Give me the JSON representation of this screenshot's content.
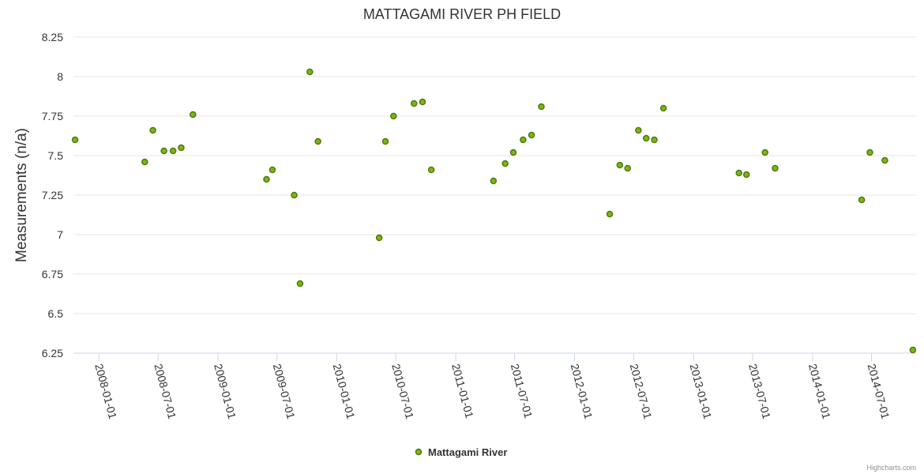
{
  "credits": "Highcharts.com",
  "chart_data": {
    "type": "scatter",
    "title": "MATTAGAMI RIVER PH FIELD",
    "xlabel": "",
    "ylabel": "Measurements (n/a)",
    "xlim": [
      "2007-10-15",
      "2014-11-15"
    ],
    "ylim": [
      6.25,
      8.25
    ],
    "y_ticks": [
      "6.25",
      "6.5",
      "6.75",
      "7",
      "7.25",
      "7.5",
      "7.75",
      "8",
      "8.25"
    ],
    "x_ticks": [
      "2008-01-01",
      "2008-07-01",
      "2009-01-01",
      "2009-07-01",
      "2010-01-01",
      "2010-07-01",
      "2011-01-01",
      "2011-07-01",
      "2012-01-01",
      "2012-07-01",
      "2013-01-01",
      "2013-07-01",
      "2014-01-01",
      "2014-07-01"
    ],
    "grid": true,
    "legend_position": "bottom-center",
    "colors": {
      "marker_fill": "#7cb518",
      "marker_stroke": "#4d7a0a"
    },
    "series": [
      {
        "name": "Mattagami River",
        "points": [
          {
            "x": "2007-10-20",
            "y": 7.6
          },
          {
            "x": "2008-05-21",
            "y": 7.46
          },
          {
            "x": "2008-06-15",
            "y": 7.66
          },
          {
            "x": "2008-07-19",
            "y": 7.53
          },
          {
            "x": "2008-08-16",
            "y": 7.53
          },
          {
            "x": "2008-09-10",
            "y": 7.55
          },
          {
            "x": "2008-10-16",
            "y": 7.76
          },
          {
            "x": "2009-05-30",
            "y": 7.35
          },
          {
            "x": "2009-06-17",
            "y": 7.41
          },
          {
            "x": "2009-08-23",
            "y": 7.25
          },
          {
            "x": "2009-09-10",
            "y": 6.69
          },
          {
            "x": "2009-10-10",
            "y": 8.03
          },
          {
            "x": "2009-11-04",
            "y": 7.59
          },
          {
            "x": "2010-05-11",
            "y": 6.98
          },
          {
            "x": "2010-05-30",
            "y": 7.59
          },
          {
            "x": "2010-06-24",
            "y": 7.75
          },
          {
            "x": "2010-08-26",
            "y": 7.83
          },
          {
            "x": "2010-09-21",
            "y": 7.84
          },
          {
            "x": "2010-10-18",
            "y": 7.41
          },
          {
            "x": "2011-04-27",
            "y": 7.34
          },
          {
            "x": "2011-06-02",
            "y": 7.45
          },
          {
            "x": "2011-06-27",
            "y": 7.52
          },
          {
            "x": "2011-07-27",
            "y": 7.6
          },
          {
            "x": "2011-08-22",
            "y": 7.63
          },
          {
            "x": "2011-09-21",
            "y": 7.81
          },
          {
            "x": "2012-04-18",
            "y": 7.13
          },
          {
            "x": "2012-05-19",
            "y": 7.44
          },
          {
            "x": "2012-06-12",
            "y": 7.42
          },
          {
            "x": "2012-07-15",
            "y": 7.66
          },
          {
            "x": "2012-08-08",
            "y": 7.61
          },
          {
            "x": "2012-09-02",
            "y": 7.6
          },
          {
            "x": "2012-09-30",
            "y": 7.8
          },
          {
            "x": "2013-05-20",
            "y": 7.39
          },
          {
            "x": "2013-06-12",
            "y": 7.38
          },
          {
            "x": "2013-08-08",
            "y": 7.52
          },
          {
            "x": "2013-09-08",
            "y": 7.42
          },
          {
            "x": "2014-06-01",
            "y": 7.22
          },
          {
            "x": "2014-06-26",
            "y": 7.52
          },
          {
            "x": "2014-08-11",
            "y": 7.47
          },
          {
            "x": "2014-11-05",
            "y": 6.27
          }
        ]
      }
    ]
  }
}
